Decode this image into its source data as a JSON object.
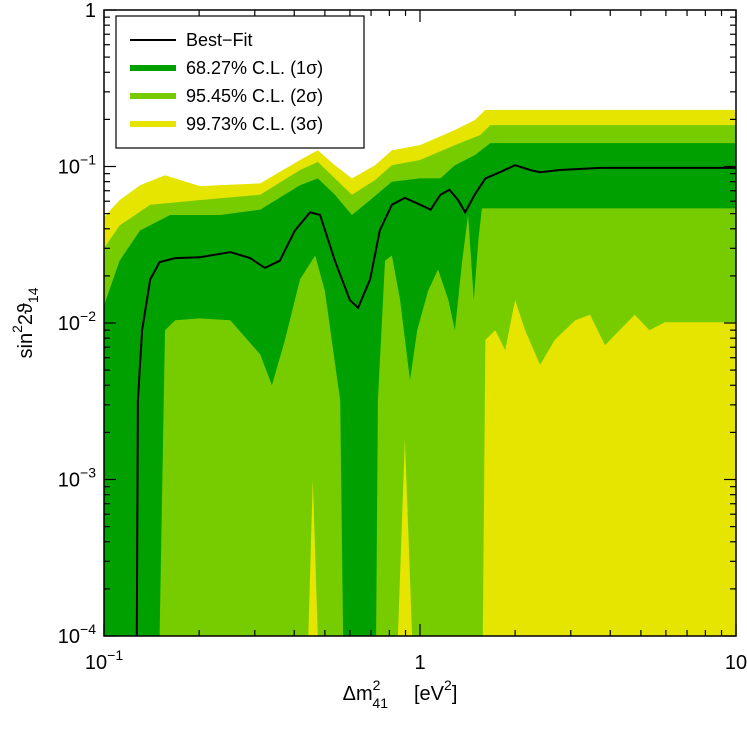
{
  "chart_data": {
    "type": "area",
    "xscale": "log",
    "yscale": "log",
    "xlabel": {
      "base": "Δm",
      "sup": "2",
      "sub": "41",
      "unit": "[eV",
      "unit_sup": "2",
      "close": "]"
    },
    "ylabel": {
      "base": "sin",
      "sup": "2",
      "mid": "2ϑ",
      "sub": "14"
    },
    "xlim": [
      0.1,
      10
    ],
    "ylim": [
      0.0001,
      1
    ],
    "xticks": [
      {
        "value": 0.1,
        "label": "10",
        "exponent": "−1"
      },
      1,
      10
    ],
    "yticks": [
      {
        "value": 0.0001,
        "label": "10",
        "exponent": "−4"
      },
      {
        "value": 0.001,
        "label": "10",
        "exponent": "−3"
      },
      {
        "value": 0.01,
        "label": "10",
        "exponent": "−2"
      },
      {
        "value": 0.1,
        "label": "10",
        "exponent": "−1"
      },
      1
    ],
    "xticks_minor": [
      0.2,
      0.3,
      0.4,
      0.5,
      0.6,
      0.7,
      0.8,
      0.9,
      2,
      3,
      4,
      5,
      6,
      7,
      8,
      9
    ],
    "yticks_minor": [
      0.0002,
      0.0003,
      0.0004,
      0.0005,
      0.0006,
      0.0007,
      0.0008,
      0.0009,
      0.002,
      0.003,
      0.004,
      0.005,
      0.006,
      0.007,
      0.008,
      0.009,
      0.02,
      0.03,
      0.04,
      0.05,
      0.06,
      0.07,
      0.08,
      0.09,
      0.2,
      0.3,
      0.4,
      0.5,
      0.6,
      0.7,
      0.8,
      0.9
    ],
    "legend": "upper left",
    "series": [
      {
        "name": "Best−Fit",
        "type": "line",
        "color": "#000000",
        "x": [
          0.127,
          0.128,
          0.132,
          0.14,
          0.15,
          0.168,
          0.201,
          0.251,
          0.29,
          0.323,
          0.36,
          0.402,
          0.449,
          0.483,
          0.538,
          0.6,
          0.637,
          0.695,
          0.746,
          0.815,
          0.896,
          1,
          1.08,
          1.16,
          1.24,
          1.32,
          1.39,
          1.49,
          1.61,
          1.79,
          2.0,
          2.23,
          2.4,
          2.77,
          3.72,
          10
        ],
        "y": [
          0.0001,
          0.0032,
          0.009,
          0.019,
          0.0245,
          0.026,
          0.0263,
          0.0284,
          0.026,
          0.0225,
          0.025,
          0.039,
          0.051,
          0.049,
          0.025,
          0.014,
          0.0125,
          0.019,
          0.039,
          0.057,
          0.063,
          0.057,
          0.053,
          0.066,
          0.071,
          0.061,
          0.051,
          0.066,
          0.084,
          0.092,
          0.102,
          0.095,
          0.092,
          0.095,
          0.098,
          0.098
        ]
      },
      {
        "name": "68.27% C.L. (1σ)",
        "type": "area",
        "color": "#00a000",
        "upper_x": [
          0.1,
          0.112,
          0.13,
          0.162,
          0.233,
          0.312,
          0.417,
          0.475,
          0.538,
          0.609,
          0.695,
          0.815,
          1,
          1.16,
          1.29,
          1.49,
          1.67,
          10
        ],
        "upper_y": [
          0.013,
          0.025,
          0.039,
          0.049,
          0.049,
          0.053,
          0.076,
          0.084,
          0.066,
          0.049,
          0.061,
          0.08,
          0.084,
          0.084,
          0.102,
          0.118,
          0.141,
          0.141
        ],
        "lower_x": [
          0.1,
          0.15,
          0.156,
          0.168,
          0.201,
          0.251,
          0.312,
          0.34,
          0.374,
          0.417,
          0.466,
          0.5,
          0.559,
          0.571,
          0.726,
          0.736,
          0.775,
          0.815,
          0.865,
          0.93,
          0.98,
          1.06,
          1.14,
          1.23,
          1.29,
          1.36,
          1.42,
          1.48,
          1.53,
          1.57,
          10
        ],
        "lower_y": [
          0.0001,
          0.0001,
          0.009,
          0.0104,
          0.0107,
          0.0104,
          0.0063,
          0.004,
          0.0078,
          0.019,
          0.027,
          0.016,
          0.0032,
          0.0001,
          0.0001,
          0.0032,
          0.025,
          0.027,
          0.014,
          0.0043,
          0.009,
          0.016,
          0.022,
          0.014,
          0.009,
          0.025,
          0.049,
          0.014,
          0.034,
          0.054,
          0.054
        ]
      },
      {
        "name": "95.45% C.L. (2σ)",
        "type": "area",
        "color": "#77cc00",
        "upper_x": [
          0.1,
          0.112,
          0.14,
          0.201,
          0.312,
          0.417,
          0.475,
          0.538,
          0.609,
          0.721,
          0.815,
          1,
          1.29,
          1.55,
          1.67,
          10
        ],
        "upper_y": [
          0.03,
          0.042,
          0.057,
          0.061,
          0.066,
          0.095,
          0.107,
          0.084,
          0.066,
          0.082,
          0.102,
          0.11,
          0.137,
          0.159,
          0.184,
          0.184
        ],
        "lower_x": [
          0.1,
          0.443,
          0.458,
          0.475,
          0.851,
          0.896,
          0.944,
          1.58,
          1.61,
          1.73,
          1.86,
          2.0,
          2.15,
          2.4,
          2.67,
          3.1,
          3.45,
          3.85,
          4.28,
          4.78,
          5.32,
          5.96,
          10
        ],
        "lower_y": [
          0.0001,
          0.0001,
          0.001,
          0.0001,
          0.0001,
          0.0018,
          0.0001,
          0.0001,
          0.0078,
          0.009,
          0.0067,
          0.014,
          0.009,
          0.0054,
          0.0078,
          0.0104,
          0.0113,
          0.0072,
          0.009,
          0.0113,
          0.009,
          0.0101,
          0.0101
        ]
      },
      {
        "name": "99.73% C.L. (3σ)",
        "type": "area",
        "color": "#e5e500",
        "upper_x": [
          0.1,
          0.112,
          0.13,
          0.156,
          0.201,
          0.312,
          0.417,
          0.475,
          0.538,
          0.609,
          0.721,
          0.815,
          1,
          1.29,
          1.49,
          1.61,
          10
        ],
        "upper_y": [
          0.0475,
          0.061,
          0.076,
          0.088,
          0.075,
          0.078,
          0.11,
          0.127,
          0.102,
          0.084,
          0.102,
          0.127,
          0.137,
          0.171,
          0.198,
          0.23,
          0.23
        ]
      }
    ]
  }
}
